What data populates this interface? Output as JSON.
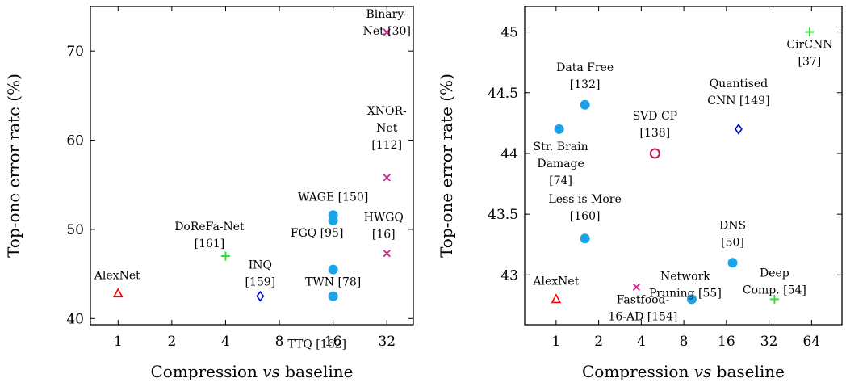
{
  "chart_data": [
    {
      "type": "scatter",
      "xscale": "log2",
      "xlabel_parts": [
        "Compression ",
        "vs",
        " baseline"
      ],
      "ylabel": "Top-one error rate (%)",
      "xlim": [
        0.7,
        45
      ],
      "ylim": [
        39.3,
        75
      ],
      "xticks": [
        1,
        2,
        4,
        8,
        16,
        32
      ],
      "xtick_labels": [
        "1",
        "2",
        "4",
        "8",
        "16",
        "32"
      ],
      "yticks": [
        40,
        50,
        60,
        70
      ],
      "ytick_labels": [
        "40",
        "50",
        "60",
        "70"
      ],
      "grid": false,
      "points": [
        {
          "x": 1,
          "y": 42.8,
          "marker": "triangle",
          "color": "#ff0000",
          "label": [
            "AlexNet"
          ]
        },
        {
          "x": 4,
          "y": 47,
          "marker": "plus",
          "color": "#33dd33",
          "label": [
            "DoReFa-Net",
            "[161]"
          ]
        },
        {
          "x": 6.25,
          "y": 42.5,
          "marker": "diamond",
          "color": "#0000cc",
          "label": [
            "INQ",
            "[159]"
          ]
        },
        {
          "x": 16,
          "y": 51.6,
          "marker": "circle",
          "color": "#1aa3e8",
          "label": [
            "WAGE [150]"
          ]
        },
        {
          "x": 16,
          "y": 51.0,
          "marker": "circle",
          "color": "#1aa3e8",
          "label": [
            "FGQ [95]"
          ]
        },
        {
          "x": 16,
          "y": 45.5,
          "marker": "circle",
          "color": "#1aa3e8",
          "label": [
            "TWN [78]"
          ]
        },
        {
          "x": 16,
          "y": 42.5,
          "marker": "circle",
          "color": "#1aa3e8",
          "label": [
            "TTQ [162]"
          ]
        },
        {
          "x": 32,
          "y": 72.1,
          "marker": "cross",
          "color": "#cc2288",
          "label": [
            "Binary-",
            "Net [30]"
          ]
        },
        {
          "x": 32,
          "y": 55.8,
          "marker": "cross",
          "color": "#cc2288",
          "label": [
            "XNOR-",
            "Net",
            "[112]"
          ]
        },
        {
          "x": 32,
          "y": 47.3,
          "marker": "cross",
          "color": "#cc2288",
          "label": [
            "HWGQ",
            "[16]"
          ]
        }
      ]
    },
    {
      "type": "scatter",
      "xscale": "log2",
      "xlabel_parts": [
        "Compression ",
        "vs",
        " baseline"
      ],
      "ylabel": "Top-one error rate (%)",
      "xlim": [
        0.6,
        105
      ],
      "ylim": [
        42.59,
        45.21
      ],
      "xticks": [
        1,
        2,
        4,
        8,
        16,
        32,
        64
      ],
      "xtick_labels": [
        "1",
        "2",
        "4",
        "8",
        "16",
        "32",
        "64"
      ],
      "yticks": [
        43,
        43.5,
        44,
        44.5,
        45
      ],
      "ytick_labels": [
        "43",
        "43.5",
        "44",
        "44.5",
        "45"
      ],
      "grid": false,
      "points": [
        {
          "x": 1,
          "y": 42.8,
          "marker": "triangle",
          "color": "#ff0000",
          "label": [
            "AlexNet"
          ]
        },
        {
          "x": 1.05,
          "y": 44.2,
          "marker": "circle",
          "color": "#1aa3e8",
          "label": [
            "Str. Brain",
            "Damage",
            "[74]"
          ]
        },
        {
          "x": 1.6,
          "y": 44.4,
          "marker": "circle",
          "color": "#1aa3e8",
          "label": [
            "Data Free",
            "[132]"
          ]
        },
        {
          "x": 1.6,
          "y": 43.3,
          "marker": "circle",
          "color": "#1aa3e8",
          "label": [
            "Less is More",
            "[160]"
          ]
        },
        {
          "x": 3.7,
          "y": 42.9,
          "marker": "cross",
          "color": "#cc2288",
          "label": [
            "Fastfood-",
            "16-AD [154]"
          ]
        },
        {
          "x": 5,
          "y": 44,
          "marker": "opencircle",
          "color": "#cc1144",
          "label": [
            "SVD CP",
            "[138]"
          ]
        },
        {
          "x": 9.1,
          "y": 42.8,
          "marker": "circle",
          "color": "#1aa3e8",
          "label": [
            "Network",
            "Pruning [55]"
          ]
        },
        {
          "x": 17.7,
          "y": 43.1,
          "marker": "circle",
          "color": "#1aa3e8",
          "label": [
            "DNS",
            "[50]"
          ]
        },
        {
          "x": 19.5,
          "y": 44.2,
          "marker": "diamond",
          "color": "#0000cc",
          "label": [
            "Quantised",
            "CNN [149]"
          ]
        },
        {
          "x": 35,
          "y": 42.8,
          "marker": "plus",
          "color": "#33dd33",
          "label": [
            "Deep",
            "Comp. [54]"
          ]
        },
        {
          "x": 62,
          "y": 45,
          "marker": "plus",
          "color": "#33dd33",
          "label": [
            "CirCNN",
            "[37]"
          ]
        }
      ]
    }
  ]
}
